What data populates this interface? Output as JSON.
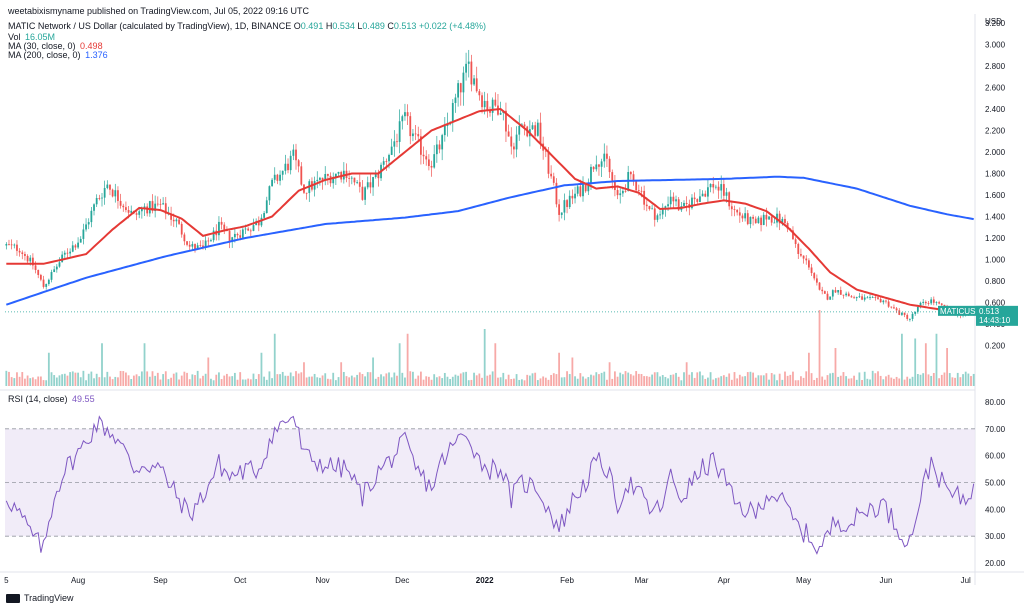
{
  "header": {
    "top_line": "weetabixismyname published on TradingView.com, Jul 05, 2022 09:16 UTC",
    "symbol": "MATIC Network / US Dollar (calculated by TradingView), 1D, BINANCE",
    "ohlc": [
      {
        "k": "O",
        "v": "0.491"
      },
      {
        "k": "H",
        "v": "0.534"
      },
      {
        "k": "L",
        "v": "0.489"
      },
      {
        "k": "C",
        "v": "0.513"
      },
      {
        "k": "",
        "v": "+0.022 (+4.48%)"
      }
    ],
    "vol_label": "Vol",
    "vol_value": "16.05M",
    "ma30_label": "MA (30, close, 0)",
    "ma30_value": "0.498",
    "ma200_label": "MA (200, close, 0)",
    "ma200_value": "1.376",
    "rsi_label": "RSI (14, close)",
    "rsi_value": "49.55",
    "currency": "USD",
    "ticker_tag": "MATICUSD",
    "price_tag": "0.513",
    "countdown_tag": "14:43:10",
    "brand": "TradingView"
  },
  "colors": {
    "up": "#26a69a",
    "down": "#ef5350",
    "ma30": "#e53935",
    "ma200": "#2962ff",
    "rsi": "#7e57c2",
    "rsi_band": "#ede7f6",
    "tag": "#26a69a"
  },
  "chart_data": [
    {
      "type": "candlestick",
      "title": "MATIC Network / US Dollar (calculated by TradingView), 1D, BINANCE",
      "ylabel": "USD",
      "y_ticks": [
        0.2,
        0.4,
        0.6,
        0.8,
        1.0,
        1.2,
        1.4,
        1.6,
        1.8,
        2.0,
        2.2,
        2.4,
        2.6,
        2.8,
        3.0,
        3.2
      ],
      "y_tick_labels": [
        "0.200",
        "0.400",
        "0.600",
        "0.800",
        "1.000",
        "1.200",
        "1.400",
        "1.600",
        "1.800",
        "2.000",
        "2.200",
        "2.400",
        "2.600",
        "2.800",
        "3.000",
        "3.200"
      ],
      "x_tick_labels": [
        "5",
        "Aug",
        "Sep",
        "Oct",
        "Nov",
        "Dec",
        "2022",
        "Feb",
        "Mar",
        "Apr",
        "May",
        "Jun",
        "Jul"
      ],
      "x_tick_days": [
        0,
        27,
        58,
        88,
        119,
        149,
        180,
        211,
        239,
        270,
        300,
        331,
        361
      ],
      "series_close_anchors": [
        [
          0,
          1.13
        ],
        [
          5,
          1.1
        ],
        [
          10,
          0.95
        ],
        [
          14,
          0.75
        ],
        [
          18,
          0.9
        ],
        [
          22,
          1.05
        ],
        [
          28,
          1.2
        ],
        [
          34,
          1.55
        ],
        [
          38,
          1.7
        ],
        [
          42,
          1.58
        ],
        [
          48,
          1.4
        ],
        [
          52,
          1.48
        ],
        [
          58,
          1.5
        ],
        [
          64,
          1.35
        ],
        [
          69,
          1.12
        ],
        [
          74,
          1.1
        ],
        [
          80,
          1.3
        ],
        [
          84,
          1.2
        ],
        [
          88,
          1.25
        ],
        [
          95,
          1.35
        ],
        [
          100,
          1.7
        ],
        [
          104,
          1.82
        ],
        [
          108,
          1.95
        ],
        [
          112,
          1.65
        ],
        [
          116,
          1.7
        ],
        [
          122,
          1.78
        ],
        [
          128,
          1.82
        ],
        [
          134,
          1.6
        ],
        [
          140,
          1.8
        ],
        [
          144,
          2.0
        ],
        [
          150,
          2.3
        ],
        [
          154,
          2.1
        ],
        [
          160,
          1.9
        ],
        [
          164,
          2.1
        ],
        [
          170,
          2.55
        ],
        [
          174,
          2.8
        ],
        [
          178,
          2.55
        ],
        [
          182,
          2.4
        ],
        [
          186,
          2.45
        ],
        [
          190,
          2.05
        ],
        [
          194,
          2.25
        ],
        [
          200,
          2.2
        ],
        [
          204,
          1.85
        ],
        [
          208,
          1.45
        ],
        [
          214,
          1.6
        ],
        [
          218,
          1.7
        ],
        [
          222,
          1.95
        ],
        [
          226,
          1.9
        ],
        [
          230,
          1.55
        ],
        [
          234,
          1.75
        ],
        [
          238,
          1.68
        ],
        [
          242,
          1.45
        ],
        [
          246,
          1.4
        ],
        [
          250,
          1.6
        ],
        [
          254,
          1.45
        ],
        [
          258,
          1.55
        ],
        [
          262,
          1.62
        ],
        [
          266,
          1.7
        ],
        [
          270,
          1.62
        ],
        [
          274,
          1.45
        ],
        [
          278,
          1.38
        ],
        [
          282,
          1.32
        ],
        [
          286,
          1.4
        ],
        [
          290,
          1.38
        ],
        [
          294,
          1.32
        ],
        [
          298,
          1.05
        ],
        [
          302,
          0.95
        ],
        [
          306,
          0.7
        ],
        [
          309,
          0.65
        ],
        [
          312,
          0.72
        ],
        [
          318,
          0.65
        ],
        [
          324,
          0.63
        ],
        [
          330,
          0.62
        ],
        [
          336,
          0.5
        ],
        [
          340,
          0.45
        ],
        [
          344,
          0.58
        ],
        [
          348,
          0.62
        ],
        [
          352,
          0.56
        ],
        [
          356,
          0.5
        ],
        [
          361,
          0.49
        ],
        [
          364,
          0.513
        ]
      ],
      "ma30_anchors": [
        [
          14,
          0.96
        ],
        [
          30,
          1.05
        ],
        [
          40,
          1.28
        ],
        [
          50,
          1.48
        ],
        [
          58,
          1.46
        ],
        [
          66,
          1.38
        ],
        [
          74,
          1.22
        ],
        [
          82,
          1.27
        ],
        [
          90,
          1.31
        ],
        [
          100,
          1.4
        ],
        [
          110,
          1.64
        ],
        [
          120,
          1.74
        ],
        [
          130,
          1.8
        ],
        [
          140,
          1.8
        ],
        [
          150,
          2.0
        ],
        [
          160,
          2.2
        ],
        [
          170,
          2.3
        ],
        [
          178,
          2.38
        ],
        [
          186,
          2.4
        ],
        [
          196,
          2.2
        ],
        [
          206,
          1.95
        ],
        [
          214,
          1.75
        ],
        [
          222,
          1.66
        ],
        [
          230,
          1.68
        ],
        [
          238,
          1.62
        ],
        [
          246,
          1.47
        ],
        [
          254,
          1.48
        ],
        [
          262,
          1.52
        ],
        [
          270,
          1.55
        ],
        [
          278,
          1.52
        ],
        [
          286,
          1.45
        ],
        [
          294,
          1.3
        ],
        [
          302,
          1.1
        ],
        [
          310,
          0.88
        ],
        [
          320,
          0.72
        ],
        [
          330,
          0.65
        ],
        [
          340,
          0.58
        ],
        [
          350,
          0.54
        ],
        [
          358,
          0.51
        ],
        [
          364,
          0.498
        ]
      ],
      "ma200_anchors": [
        [
          0,
          0.58
        ],
        [
          30,
          0.83
        ],
        [
          60,
          1.03
        ],
        [
          90,
          1.2
        ],
        [
          120,
          1.33
        ],
        [
          150,
          1.39
        ],
        [
          170,
          1.45
        ],
        [
          190,
          1.58
        ],
        [
          210,
          1.69
        ],
        [
          230,
          1.73
        ],
        [
          250,
          1.74
        ],
        [
          270,
          1.75
        ],
        [
          290,
          1.77
        ],
        [
          300,
          1.76
        ],
        [
          320,
          1.66
        ],
        [
          340,
          1.5
        ],
        [
          354,
          1.42
        ],
        [
          364,
          1.376
        ]
      ],
      "last_close": 0.513,
      "ma30_last": 0.498,
      "ma200_last": 1.376
    },
    {
      "type": "bar",
      "title": "Vol",
      "last_value": "16.05M",
      "spikes": [
        [
          16,
          0.35
        ],
        [
          36,
          0.45
        ],
        [
          52,
          0.45
        ],
        [
          76,
          0.3
        ],
        [
          96,
          0.35
        ],
        [
          101,
          0.55
        ],
        [
          112,
          0.25
        ],
        [
          126,
          0.25
        ],
        [
          138,
          0.3
        ],
        [
          148,
          0.45
        ],
        [
          151,
          0.55
        ],
        [
          180,
          0.6
        ],
        [
          184,
          0.45
        ],
        [
          208,
          0.35
        ],
        [
          213,
          0.3
        ],
        [
          227,
          0.25
        ],
        [
          256,
          0.25
        ],
        [
          302,
          0.35
        ],
        [
          306,
          0.8
        ],
        [
          312,
          0.4
        ],
        [
          337,
          0.55
        ],
        [
          342,
          0.5
        ],
        [
          346,
          0.45
        ],
        [
          350,
          0.55
        ],
        [
          354,
          0.4
        ]
      ]
    },
    {
      "type": "line",
      "title": "RSI (14, close)",
      "last_value": 49.55,
      "y_ticks": [
        20,
        30,
        40,
        50,
        60,
        70,
        80
      ],
      "y_tick_labels": [
        "20.00",
        "30.00",
        "40.00",
        "50.00",
        "60.00",
        "70.00",
        "80.00"
      ],
      "band": [
        30,
        70
      ],
      "mid_line": 50,
      "anchors": [
        [
          0,
          45
        ],
        [
          5,
          38
        ],
        [
          10,
          30
        ],
        [
          14,
          25
        ],
        [
          18,
          45
        ],
        [
          22,
          55
        ],
        [
          28,
          62
        ],
        [
          34,
          72
        ],
        [
          38,
          70
        ],
        [
          42,
          66
        ],
        [
          48,
          55
        ],
        [
          52,
          57
        ],
        [
          58,
          55
        ],
        [
          64,
          45
        ],
        [
          69,
          38
        ],
        [
          74,
          45
        ],
        [
          80,
          57
        ],
        [
          84,
          52
        ],
        [
          88,
          54
        ],
        [
          95,
          55
        ],
        [
          100,
          68
        ],
        [
          104,
          72
        ],
        [
          108,
          75
        ],
        [
          112,
          60
        ],
        [
          116,
          58
        ],
        [
          122,
          56
        ],
        [
          128,
          55
        ],
        [
          134,
          45
        ],
        [
          140,
          54
        ],
        [
          144,
          58
        ],
        [
          150,
          65
        ],
        [
          154,
          55
        ],
        [
          160,
          48
        ],
        [
          164,
          58
        ],
        [
          170,
          66
        ],
        [
          174,
          68
        ],
        [
          178,
          58
        ],
        [
          182,
          55
        ],
        [
          186,
          56
        ],
        [
          190,
          44
        ],
        [
          194,
          50
        ],
        [
          200,
          48
        ],
        [
          204,
          40
        ],
        [
          208,
          33
        ],
        [
          214,
          45
        ],
        [
          218,
          50
        ],
        [
          222,
          58
        ],
        [
          226,
          55
        ],
        [
          230,
          42
        ],
        [
          234,
          50
        ],
        [
          238,
          46
        ],
        [
          242,
          40
        ],
        [
          246,
          40
        ],
        [
          250,
          52
        ],
        [
          254,
          44
        ],
        [
          258,
          50
        ],
        [
          262,
          55
        ],
        [
          266,
          58
        ],
        [
          270,
          52
        ],
        [
          274,
          42
        ],
        [
          278,
          40
        ],
        [
          282,
          38
        ],
        [
          286,
          46
        ],
        [
          290,
          45
        ],
        [
          294,
          40
        ],
        [
          298,
          33
        ],
        [
          302,
          30
        ],
        [
          306,
          25
        ],
        [
          309,
          30
        ],
        [
          312,
          36
        ],
        [
          318,
          35
        ],
        [
          324,
          40
        ],
        [
          330,
          42
        ],
        [
          336,
          32
        ],
        [
          340,
          28
        ],
        [
          344,
          45
        ],
        [
          348,
          58
        ],
        [
          352,
          50
        ],
        [
          356,
          45
        ],
        [
          361,
          44
        ],
        [
          364,
          49.55
        ]
      ]
    }
  ]
}
